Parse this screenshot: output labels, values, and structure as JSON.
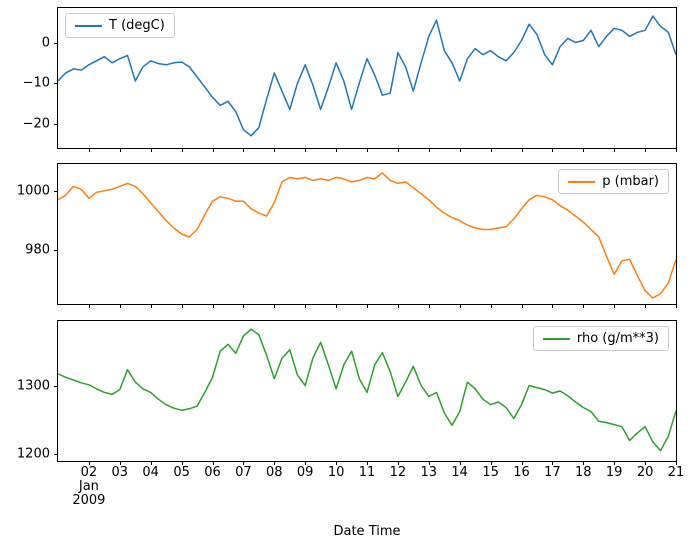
{
  "figure": {
    "background": "#ffffff"
  },
  "chart_data": {
    "type": "line",
    "x_label": "Date Time",
    "x_unit": "day of January 2009",
    "xlim": [
      1,
      21
    ],
    "grid": false,
    "xticks": [
      {
        "value": 2,
        "label": "02",
        "sublabels": [
          "Jan",
          "2009"
        ]
      },
      {
        "value": 3,
        "label": "03"
      },
      {
        "value": 4,
        "label": "04"
      },
      {
        "value": 5,
        "label": "05"
      },
      {
        "value": 6,
        "label": "06"
      },
      {
        "value": 7,
        "label": "07"
      },
      {
        "value": 8,
        "label": "08"
      },
      {
        "value": 9,
        "label": "09"
      },
      {
        "value": 10,
        "label": "10"
      },
      {
        "value": 11,
        "label": "11"
      },
      {
        "value": 12,
        "label": "12"
      },
      {
        "value": 13,
        "label": "13"
      },
      {
        "value": 14,
        "label": "14"
      },
      {
        "value": 15,
        "label": "15"
      },
      {
        "value": 16,
        "label": "16"
      },
      {
        "value": 17,
        "label": "17"
      },
      {
        "value": 18,
        "label": "18"
      },
      {
        "value": 19,
        "label": "19"
      },
      {
        "value": 20,
        "label": "20"
      },
      {
        "value": 21,
        "label": "21"
      }
    ],
    "x": [
      1,
      1.25,
      1.5,
      1.75,
      2,
      2.25,
      2.5,
      2.75,
      3,
      3.25,
      3.5,
      3.75,
      4,
      4.25,
      4.5,
      4.75,
      5,
      5.25,
      5.5,
      5.75,
      6,
      6.25,
      6.5,
      6.75,
      7,
      7.25,
      7.5,
      7.75,
      8,
      8.25,
      8.5,
      8.75,
      9,
      9.25,
      9.5,
      9.75,
      10,
      10.25,
      10.5,
      10.75,
      11,
      11.25,
      11.5,
      11.75,
      12,
      12.25,
      12.5,
      12.75,
      13,
      13.25,
      13.5,
      13.75,
      14,
      14.25,
      14.5,
      14.75,
      15,
      15.25,
      15.5,
      15.75,
      16,
      16.25,
      16.5,
      16.75,
      17,
      17.25,
      17.5,
      17.75,
      18,
      18.25,
      18.5,
      18.75,
      19,
      19.25,
      19.5,
      19.75,
      20,
      20.25,
      20.5,
      20.75,
      21
    ],
    "subplots": [
      {
        "name": "T (degC)",
        "color": "#1f77b4",
        "legend_position": "upper-left",
        "ylim": [
          -26,
          8.5
        ],
        "yticks": [
          {
            "value": 0,
            "label": "0"
          },
          {
            "value": -10,
            "label": "−10"
          },
          {
            "value": -20,
            "label": "−20"
          }
        ],
        "values": [
          -9.5,
          -7.5,
          -6.5,
          -6.8,
          -5.5,
          -4.5,
          -3.5,
          -5,
          -4,
          -3.2,
          -9.5,
          -6,
          -4.5,
          -5.2,
          -5.5,
          -5,
          -4.8,
          -6,
          -8.5,
          -11,
          -13.5,
          -15.5,
          -14.5,
          -17,
          -21.5,
          -23,
          -21,
          -14,
          -7.5,
          -12,
          -16.5,
          -10,
          -5.5,
          -10.5,
          -16.5,
          -11,
          -5,
          -9.5,
          -16.5,
          -10,
          -4,
          -8,
          -13,
          -12.5,
          -2.5,
          -6,
          -12,
          -5,
          1.5,
          5.5,
          -2,
          -5,
          -9.5,
          -4,
          -1.5,
          -3,
          -2,
          -3.5,
          -4.5,
          -2.5,
          0.5,
          4.5,
          2,
          -3,
          -5.5,
          -1,
          1,
          0,
          0.5,
          3,
          -1,
          1.5,
          3.5,
          3,
          1.5,
          2.5,
          3,
          6.5,
          4,
          2.5,
          -3
        ]
      },
      {
        "name": "p (mbar)",
        "color": "#ff7f0e",
        "legend_position": "upper-right",
        "ylim": [
          962,
          1009
        ],
        "yticks": [
          {
            "value": 1000,
            "label": "1000"
          },
          {
            "value": 980,
            "label": "980"
          }
        ],
        "values": [
          997,
          998.5,
          1001.5,
          1000.5,
          997.5,
          999.5,
          1000,
          1000.5,
          1001.5,
          1002.5,
          1001.5,
          999,
          996,
          993,
          990,
          987.5,
          985.5,
          984.5,
          987,
          992,
          996.5,
          998,
          997.5,
          996.5,
          996.5,
          994,
          992.5,
          991.5,
          996,
          1003,
          1004.5,
          1004,
          1004.5,
          1003.5,
          1004,
          1003.5,
          1004.5,
          1004,
          1003,
          1003.5,
          1004.5,
          1004,
          1006,
          1003.5,
          1002.5,
          1003,
          1001,
          999,
          997,
          994.5,
          992.5,
          991,
          990,
          988.5,
          987.5,
          987,
          987,
          987.5,
          988,
          990.5,
          994,
          997,
          998.5,
          998,
          997,
          995,
          993.5,
          991.5,
          989.5,
          987,
          984.5,
          978,
          972,
          976.5,
          977,
          971.5,
          966.5,
          964,
          965.5,
          969,
          977
        ]
      },
      {
        "name": "rho (g/m**3)",
        "color": "#2ca02c",
        "legend_position": "upper-right",
        "ylim": [
          1190,
          1394
        ],
        "yticks": [
          {
            "value": 1300,
            "label": "1300"
          },
          {
            "value": 1200,
            "label": "1200"
          }
        ],
        "values": [
          1317,
          1312,
          1308,
          1304,
          1301,
          1295,
          1290,
          1287,
          1294,
          1323,
          1305,
          1295,
          1290,
          1280,
          1272,
          1267,
          1264,
          1266,
          1270,
          1290,
          1312,
          1350,
          1360,
          1347,
          1372,
          1382,
          1374,
          1344,
          1310,
          1340,
          1352,
          1315,
          1300,
          1340,
          1363,
          1330,
          1295,
          1330,
          1350,
          1310,
          1290,
          1330,
          1348,
          1320,
          1284,
          1305,
          1328,
          1300,
          1284,
          1290,
          1260,
          1242,
          1262,
          1305,
          1295,
          1280,
          1272,
          1276,
          1268,
          1252,
          1272,
          1300,
          1297,
          1294,
          1289,
          1292,
          1285,
          1276,
          1268,
          1262,
          1248,
          1246,
          1243,
          1240,
          1220,
          1231,
          1240,
          1218,
          1205,
          1226,
          1263
        ]
      }
    ]
  }
}
